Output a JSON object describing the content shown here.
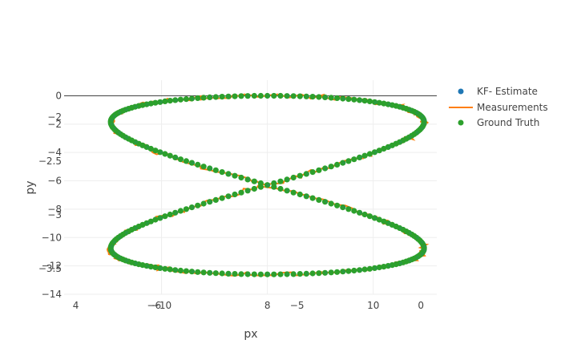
{
  "chart_data": {
    "type": "scatter",
    "title": "",
    "xlabel": "px",
    "ylabel": "py",
    "grid": true,
    "legend_position": "top-right",
    "colors": {
      "kf_estimate": "#1f77b4",
      "measurements": "#ff7f0e",
      "ground_truth": "#2ca02c",
      "grid": "#eeeeee",
      "zero_line": "#444444"
    },
    "x_ticks_primary": [
      "-10",
      "8",
      "10"
    ],
    "x_ticks_secondary": [
      "4",
      "-6",
      "-5",
      "0"
    ],
    "y_ticks_primary": [
      "0",
      "-2",
      "-4",
      "-6",
      "-8",
      "-10",
      "-12",
      "-14"
    ],
    "y_ticks_secondary": [
      "-2",
      "-2.5",
      "-3",
      "-3.5"
    ],
    "xlim": [
      -19.2,
      16
    ],
    "ylim": [
      -14,
      1.1
    ],
    "series": [
      {
        "name": "KF- Estimate",
        "mode": "markers",
        "color": "#1f77b4"
      },
      {
        "name": "Measurements",
        "mode": "lines",
        "color": "#ff7f0e"
      },
      {
        "name": "Ground Truth",
        "mode": "markers",
        "color": "#2ca02c"
      }
    ],
    "trajectory": {
      "description_note": "figure-eight path; center and lobe extents in primary axis units",
      "center_x": 0,
      "center_y": -6.3,
      "half_width": 14.8,
      "half_height": 6.3,
      "point_count": 300
    }
  }
}
